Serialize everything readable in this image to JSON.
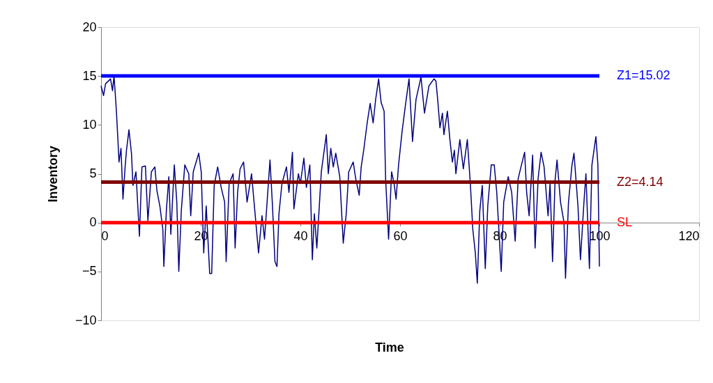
{
  "chart_data": {
    "type": "line",
    "xlabel": "Time",
    "ylabel": "Inventory",
    "xlim": [
      0,
      120
    ],
    "xticks": [
      0,
      20,
      40,
      60,
      80,
      100,
      120
    ],
    "ylim": [
      -10,
      20
    ],
    "yticks": [
      -10,
      -5,
      0,
      5,
      10,
      15,
      20
    ],
    "grid": false,
    "legend": false,
    "marker": "none",
    "line_style": "solid",
    "series": [
      {
        "color": "#000080",
        "x": [
          0,
          0.5,
          0.9,
          1.9,
          2.3,
          2.6,
          2.9,
          3.1,
          3.4,
          3.6,
          4.0,
          4.4,
          4.8,
          5.1,
          5.6,
          6.1,
          6.4,
          7.0,
          7.7,
          8.2,
          8.9,
          9.4,
          10.1,
          10.8,
          11.2,
          11.8,
          12.4,
          12.6,
          13.1,
          13.6,
          14.0,
          14.7,
          15.2,
          15.6,
          16.1,
          16.8,
          17.6,
          18.0,
          18.5,
          19.6,
          20.1,
          20.6,
          21.1,
          21.8,
          22.2,
          22.7,
          23.4,
          24.1,
          24.8,
          25.1,
          25.7,
          26.5,
          26.9,
          27.4,
          27.9,
          28.6,
          29.3,
          30.2,
          31.6,
          32.3,
          32.8,
          33.9,
          34.4,
          34.9,
          35.3,
          35.7,
          36.3,
          37.2,
          37.7,
          38.4,
          38.7,
          39.6,
          40.0,
          40.7,
          41.2,
          41.9,
          42.4,
          42.8,
          43.3,
          44.2,
          45.2,
          45.6,
          46.1,
          46.6,
          47.1,
          47.9,
          48.6,
          49.2,
          49.7,
          50.6,
          51.1,
          51.8,
          52.2,
          52.7,
          53.4,
          54.0,
          54.6,
          55.1,
          55.7,
          56.2,
          56.8,
          57.1,
          57.7,
          58.3,
          58.8,
          59.2,
          59.7,
          60.4,
          61.1,
          61.8,
          62.5,
          63.2,
          64.2,
          64.9,
          65.8,
          66.8,
          67.2,
          67.6,
          68.0,
          68.5,
          68.8,
          69.5,
          70.0,
          70.5,
          70.9,
          71.2,
          72.0,
          72.7,
          73.5,
          74.1,
          74.6,
          75.1,
          75.5,
          76.0,
          76.5,
          77.1,
          77.6,
          78.3,
          78.9,
          79.4,
          80.3,
          80.8,
          81.7,
          82.4,
          83.1,
          83.7,
          84.5,
          85.0,
          85.4,
          85.9,
          86.6,
          87.1,
          87.7,
          88.3,
          88.9,
          89.7,
          90.1,
          90.6,
          91.1,
          91.5,
          92.2,
          92.9,
          93.2,
          93.8,
          94.5,
          94.9,
          95.7,
          96.2,
          96.9,
          97.3,
          98.0,
          98.5,
          99.3,
          99.7,
          100.0
        ],
        "values": [
          14.0,
          13.0,
          14.2,
          14.7,
          13.5,
          15.0,
          12.8,
          11.2,
          8.3,
          6.2,
          7.6,
          2.4,
          5.5,
          7.4,
          9.5,
          7.1,
          3.8,
          5.2,
          -1.4,
          5.7,
          5.8,
          0.2,
          5.2,
          5.7,
          3.3,
          1.7,
          -0.7,
          -4.5,
          1.2,
          4.7,
          -1.2,
          5.9,
          2.1,
          -5.0,
          1.2,
          5.9,
          5.0,
          0.7,
          5.2,
          7.1,
          5.2,
          -3.1,
          1.7,
          -5.2,
          -5.2,
          3.8,
          5.7,
          3.6,
          2.1,
          -4.0,
          4.0,
          5.0,
          -2.6,
          3.1,
          5.5,
          6.2,
          2.1,
          5.0,
          -3.1,
          0.7,
          -1.7,
          6.4,
          1.7,
          -4.0,
          -4.5,
          0.9,
          4.0,
          5.7,
          3.1,
          7.2,
          1.4,
          5.0,
          4.0,
          6.6,
          3.6,
          5.9,
          -3.8,
          0.9,
          -2.6,
          5.2,
          9.0,
          5.0,
          7.6,
          5.7,
          7.1,
          4.7,
          -2.1,
          0.9,
          5.2,
          6.2,
          4.5,
          2.8,
          5.7,
          7.4,
          10.2,
          12.2,
          10.2,
          12.6,
          14.7,
          12.3,
          11.4,
          4.5,
          -1.7,
          5.2,
          4.0,
          2.4,
          5.9,
          9.3,
          12.1,
          14.7,
          8.3,
          12.6,
          14.9,
          11.2,
          14.0,
          14.7,
          14.5,
          12.3,
          9.7,
          11.2,
          9.0,
          11.4,
          8.5,
          6.2,
          7.4,
          5.0,
          8.5,
          5.5,
          8.5,
          4.0,
          -0.7,
          -3.1,
          -6.2,
          1.2,
          3.8,
          -4.7,
          1.7,
          5.9,
          5.9,
          3.1,
          -5.0,
          2.1,
          4.7,
          3.1,
          -1.9,
          4.5,
          6.2,
          7.2,
          3.1,
          0.7,
          6.9,
          -2.6,
          4.5,
          7.2,
          5.7,
          0.7,
          4.0,
          -4.0,
          4.3,
          6.4,
          2.1,
          0.0,
          -5.7,
          2.1,
          5.9,
          7.1,
          1.7,
          -3.8,
          2.1,
          5.0,
          -4.7,
          5.9,
          8.8,
          5.9,
          -4.5
        ]
      },
      {
        "name": "Z1=15.02",
        "color": "#0000ff",
        "x": [
          0,
          100
        ],
        "values": [
          15.02,
          15.02
        ]
      },
      {
        "name": "Z2=4.14",
        "color": "#800000",
        "x": [
          0,
          100
        ],
        "values": [
          4.14,
          4.14
        ]
      },
      {
        "name": "SL",
        "color": "#ff0000",
        "x": [
          0,
          100
        ],
        "values": [
          0,
          0
        ]
      }
    ]
  }
}
